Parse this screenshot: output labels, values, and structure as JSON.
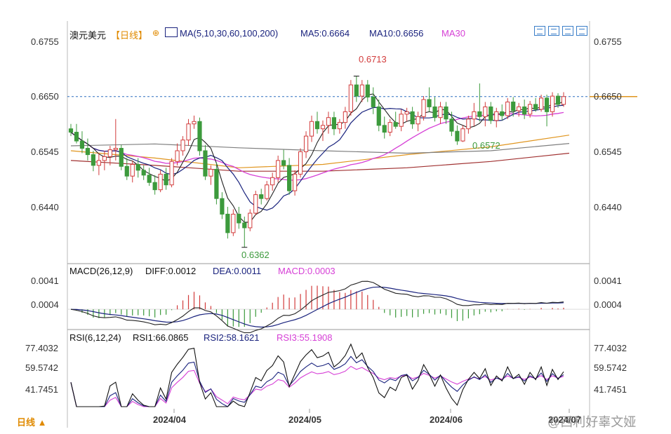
{
  "header": {
    "instrument": "澳元美元",
    "period_tag": "【日线】",
    "ma_label": "MA(5,10,30,60,100,200)",
    "ma5": "MA5:0.6664",
    "ma10": "MA10:0.6656",
    "ma30": "MA30"
  },
  "macd_header": {
    "name": "MACD(26,12,9)",
    "diff": "DIFF:0.0012",
    "dea": "DEA:0.0011",
    "macd": "MACD:0.0003"
  },
  "rsi_header": {
    "name": "RSI(6,12,24)",
    "rsi1": "RSI1:66.0865",
    "rsi2": "RSI2:58.1621",
    "rsi3": "RSI3:55.1908"
  },
  "footer": {
    "period": "日线 ▲",
    "watermark": "@西利好辜文娅"
  },
  "colors": {
    "up": "#d23b3b",
    "down": "#3c9a3c",
    "ma5": "#222222",
    "ma10": "#1a237e",
    "ma30": "#d63fd6",
    "ma60": "#e0951e",
    "ma100": "#7f7f7f",
    "ma200": "#a03030",
    "price_line": "#2e6fc0",
    "rsi1": "#111111",
    "rsi2": "#1a237e",
    "rsi3": "#d63fd6"
  },
  "chart_data": [
    {
      "type": "candlestick",
      "title": "澳元美元【日线】",
      "y_ticks": [
        "0.6755",
        "0.6650",
        "0.6545",
        "0.6440"
      ],
      "ylim": [
        0.633,
        0.679
      ],
      "x_ticks": [
        "2024/04",
        "2024/05",
        "2024/06",
        "2024/07"
      ],
      "annotations": {
        "high": "0.6713",
        "low": "0.6362",
        "local_low": "0.6572"
      },
      "current_price": 0.6671,
      "ohlc": [
        [
          0.6605,
          0.6615,
          0.659,
          0.6598
        ],
        [
          0.6598,
          0.6615,
          0.6575,
          0.658
        ],
        [
          0.658,
          0.66,
          0.6555,
          0.6565
        ],
        [
          0.6565,
          0.6585,
          0.654,
          0.6552
        ],
        [
          0.6552,
          0.656,
          0.6518,
          0.653
        ],
        [
          0.653,
          0.6555,
          0.651,
          0.654
        ],
        [
          0.654,
          0.656,
          0.652,
          0.6548
        ],
        [
          0.6548,
          0.657,
          0.653,
          0.6562
        ],
        [
          0.6562,
          0.6625,
          0.654,
          0.6565
        ],
        [
          0.6565,
          0.6572,
          0.652,
          0.6528
        ],
        [
          0.6528,
          0.6545,
          0.65,
          0.6508
        ],
        [
          0.6508,
          0.654,
          0.6495,
          0.6532
        ],
        [
          0.6532,
          0.6545,
          0.6505,
          0.652
        ],
        [
          0.652,
          0.653,
          0.65,
          0.651
        ],
        [
          0.651,
          0.6525,
          0.6488,
          0.6495
        ],
        [
          0.6495,
          0.651,
          0.647,
          0.648
        ],
        [
          0.648,
          0.652,
          0.6475,
          0.6512
        ],
        [
          0.6512,
          0.6525,
          0.648,
          0.649
        ],
        [
          0.649,
          0.6545,
          0.6485,
          0.6538
        ],
        [
          0.6538,
          0.6575,
          0.653,
          0.656
        ],
        [
          0.656,
          0.659,
          0.655,
          0.6582
        ],
        [
          0.6582,
          0.6625,
          0.657,
          0.6615
        ],
        [
          0.6615,
          0.6632,
          0.6605,
          0.662
        ],
        [
          0.662,
          0.6628,
          0.655,
          0.656
        ],
        [
          0.656,
          0.6572,
          0.65,
          0.6508
        ],
        [
          0.6508,
          0.653,
          0.649,
          0.6522
        ],
        [
          0.6522,
          0.6535,
          0.645,
          0.6462
        ],
        [
          0.6462,
          0.6475,
          0.642,
          0.643
        ],
        [
          0.643,
          0.6445,
          0.638,
          0.6392
        ],
        [
          0.6392,
          0.644,
          0.6385,
          0.643
        ],
        [
          0.643,
          0.6445,
          0.64,
          0.6412
        ],
        [
          0.6412,
          0.6425,
          0.6362,
          0.6402
        ],
        [
          0.6402,
          0.644,
          0.6395,
          0.6432
        ],
        [
          0.6432,
          0.6478,
          0.6428,
          0.647
        ],
        [
          0.647,
          0.6482,
          0.645,
          0.6462
        ],
        [
          0.6462,
          0.6498,
          0.6458,
          0.649
        ],
        [
          0.649,
          0.6515,
          0.6478,
          0.6505
        ],
        [
          0.6505,
          0.655,
          0.6495,
          0.654
        ],
        [
          0.654,
          0.6562,
          0.6522,
          0.653
        ],
        [
          0.653,
          0.6545,
          0.647,
          0.6478
        ],
        [
          0.6478,
          0.652,
          0.6468,
          0.6512
        ],
        [
          0.6512,
          0.6565,
          0.6505,
          0.6558
        ],
        [
          0.6558,
          0.66,
          0.6545,
          0.659
        ],
        [
          0.659,
          0.6632,
          0.6578,
          0.662
        ],
        [
          0.662,
          0.664,
          0.6595,
          0.6605
        ],
        [
          0.6605,
          0.6622,
          0.658,
          0.6612
        ],
        [
          0.6612,
          0.664,
          0.6595,
          0.6628
        ],
        [
          0.6628,
          0.664,
          0.6592,
          0.6605
        ],
        [
          0.6605,
          0.6625,
          0.6595,
          0.6618
        ],
        [
          0.6618,
          0.665,
          0.6605,
          0.664
        ],
        [
          0.664,
          0.6705,
          0.6632,
          0.6695
        ],
        [
          0.6695,
          0.6713,
          0.666,
          0.6672
        ],
        [
          0.6672,
          0.6705,
          0.666,
          0.6695
        ],
        [
          0.6695,
          0.6705,
          0.666,
          0.667
        ],
        [
          0.667,
          0.669,
          0.6635,
          0.665
        ],
        [
          0.665,
          0.6665,
          0.66,
          0.6612
        ],
        [
          0.6612,
          0.663,
          0.6585,
          0.6598
        ],
        [
          0.6598,
          0.6625,
          0.659,
          0.6618
        ],
        [
          0.6618,
          0.664,
          0.6605,
          0.661
        ],
        [
          0.661,
          0.6645,
          0.66,
          0.6635
        ],
        [
          0.6635,
          0.6648,
          0.662,
          0.664
        ],
        [
          0.664,
          0.665,
          0.6605,
          0.6615
        ],
        [
          0.6615,
          0.664,
          0.66,
          0.663
        ],
        [
          0.663,
          0.6672,
          0.6622,
          0.6665
        ],
        [
          0.6665,
          0.669,
          0.664,
          0.665
        ],
        [
          0.665,
          0.667,
          0.662,
          0.6628
        ],
        [
          0.6628,
          0.666,
          0.6615,
          0.665
        ],
        [
          0.665,
          0.666,
          0.6615,
          0.6625
        ],
        [
          0.6625,
          0.664,
          0.659,
          0.66
        ],
        [
          0.66,
          0.6612,
          0.6572,
          0.658
        ],
        [
          0.658,
          0.6612,
          0.6578,
          0.6605
        ],
        [
          0.6605,
          0.6632,
          0.6595,
          0.6625
        ],
        [
          0.6625,
          0.6658,
          0.661,
          0.664
        ],
        [
          0.664,
          0.6698,
          0.662,
          0.663
        ],
        [
          0.663,
          0.666,
          0.661,
          0.665
        ],
        [
          0.665,
          0.666,
          0.6615,
          0.6622
        ],
        [
          0.6622,
          0.6648,
          0.6608,
          0.664
        ],
        [
          0.664,
          0.6655,
          0.6622,
          0.6632
        ],
        [
          0.6632,
          0.6668,
          0.6625,
          0.666
        ],
        [
          0.666,
          0.667,
          0.663,
          0.6642
        ],
        [
          0.6642,
          0.6658,
          0.663,
          0.665
        ],
        [
          0.665,
          0.6665,
          0.6625,
          0.6635
        ],
        [
          0.6635,
          0.6662,
          0.6628,
          0.6655
        ],
        [
          0.6655,
          0.6668,
          0.664,
          0.6645
        ],
        [
          0.6645,
          0.6675,
          0.664,
          0.6668
        ],
        [
          0.6668,
          0.6675,
          0.661,
          0.664
        ],
        [
          0.664,
          0.668,
          0.663,
          0.6672
        ],
        [
          0.6672,
          0.6678,
          0.6648,
          0.6655
        ],
        [
          0.6655,
          0.668,
          0.665,
          0.6671
        ]
      ],
      "ma_series": {
        "MA60": {
          "x": [
            0,
            15,
            30,
            45,
            60,
            75,
            89
          ],
          "values": [
            0.656,
            0.6545,
            0.6525,
            0.6532,
            0.6552,
            0.6568,
            0.6592
          ]
        },
        "MA100": {
          "x": [
            0,
            15,
            30,
            45,
            60,
            75,
            89
          ],
          "values": [
            0.657,
            0.6574,
            0.6566,
            0.656,
            0.6555,
            0.656,
            0.6575
          ]
        },
        "MA200": {
          "x": [
            0,
            15,
            30,
            45,
            60,
            75,
            89
          ],
          "values": [
            0.654,
            0.653,
            0.6518,
            0.6518,
            0.6525,
            0.6538,
            0.6555
          ]
        }
      }
    },
    {
      "type": "line",
      "title": "MACD(26,12,9)",
      "y_ticks": [
        "0.0041",
        "0.0004"
      ],
      "ylim": [
        -0.003,
        0.0055
      ]
    },
    {
      "type": "line",
      "title": "RSI(6,12,24)",
      "y_ticks": [
        "77.4032",
        "59.5742",
        "41.7451"
      ],
      "ylim": [
        30,
        83
      ]
    }
  ]
}
